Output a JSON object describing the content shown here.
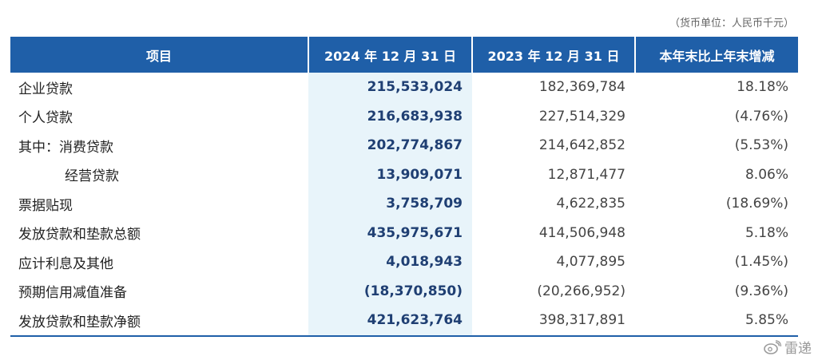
{
  "unit_note": "（货币单位：人民币千元）",
  "headers": [
    "项目",
    "2024 年 12 月 31 日",
    "2023 年 12 月 31 日",
    "本年末比上年末增减"
  ],
  "rows": [
    {
      "label": "企业贷款",
      "v2024": "215,533,024",
      "v2023": "182,369,784",
      "change": "18.18%"
    },
    {
      "label": "个人贷款",
      "v2024": "216,683,938",
      "v2023": "227,514,329",
      "change": "(4.76%)"
    },
    {
      "label": "其中：消费贷款",
      "v2024": "202,774,867",
      "v2023": "214,642,852",
      "change": "(5.53%)"
    },
    {
      "label": "经营贷款",
      "v2024": "13,909,071",
      "v2023": "12,871,477",
      "change": "8.06%"
    },
    {
      "label": "票据贴现",
      "v2024": "3,758,709",
      "v2023": "4,622,835",
      "change": "(18.69%)"
    },
    {
      "label": "发放贷款和垫款总额",
      "v2024": "435,975,671",
      "v2023": "414,506,948",
      "change": "5.18%"
    },
    {
      "label": "应计利息及其他",
      "v2024": "4,018,943",
      "v2023": "4,077,895",
      "change": "(1.45%)"
    },
    {
      "label": "预期信用减值准备",
      "v2024": "(18,370,850)",
      "v2023": "(20,266,952)",
      "change": "(9.36%)"
    },
    {
      "label": "发放贷款和垫款净额",
      "v2024": "421,623,764",
      "v2023": "398,317,891",
      "change": "5.85%"
    }
  ],
  "watermark": {
    "icon": "weibo-icon",
    "text": "雷递"
  }
}
